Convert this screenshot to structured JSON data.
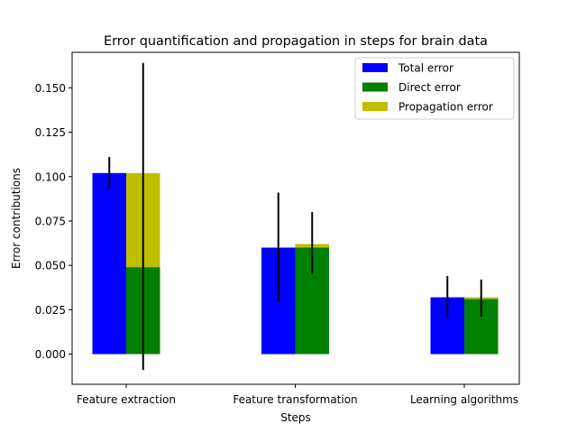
{
  "chart_data": {
    "type": "bar",
    "title": "Error quantification and propagation in steps for brain data",
    "xlabel": "Steps",
    "ylabel": "Error contributions",
    "categories": [
      "Feature extraction",
      "Feature transformation",
      "Learning algorithms"
    ],
    "ylim": [
      -0.017,
      0.17
    ],
    "yticks": [
      0.0,
      0.025,
      0.05,
      0.075,
      0.1,
      0.125,
      0.15
    ],
    "ytick_labels": [
      "0.000",
      "0.025",
      "0.050",
      "0.075",
      "0.100",
      "0.125",
      "0.150"
    ],
    "grid": false,
    "legend_position": "top-right",
    "series": [
      {
        "name": "Total error",
        "color": "#0000ff",
        "values": [
          0.102,
          0.06,
          0.032
        ],
        "err_low": [
          0.093,
          0.03,
          0.021
        ],
        "err_high": [
          0.111,
          0.091,
          0.044
        ]
      },
      {
        "name": "Direct error",
        "color": "#008000",
        "values": [
          0.049,
          0.06,
          0.031
        ]
      },
      {
        "name": "Propagation error",
        "color": "#bfbf00",
        "values": [
          0.053,
          0.002,
          0.001
        ],
        "stacked_on": "Direct error",
        "err_low": [
          -0.009,
          0.045,
          0.021
        ],
        "err_high": [
          0.164,
          0.08,
          0.042
        ]
      }
    ]
  }
}
